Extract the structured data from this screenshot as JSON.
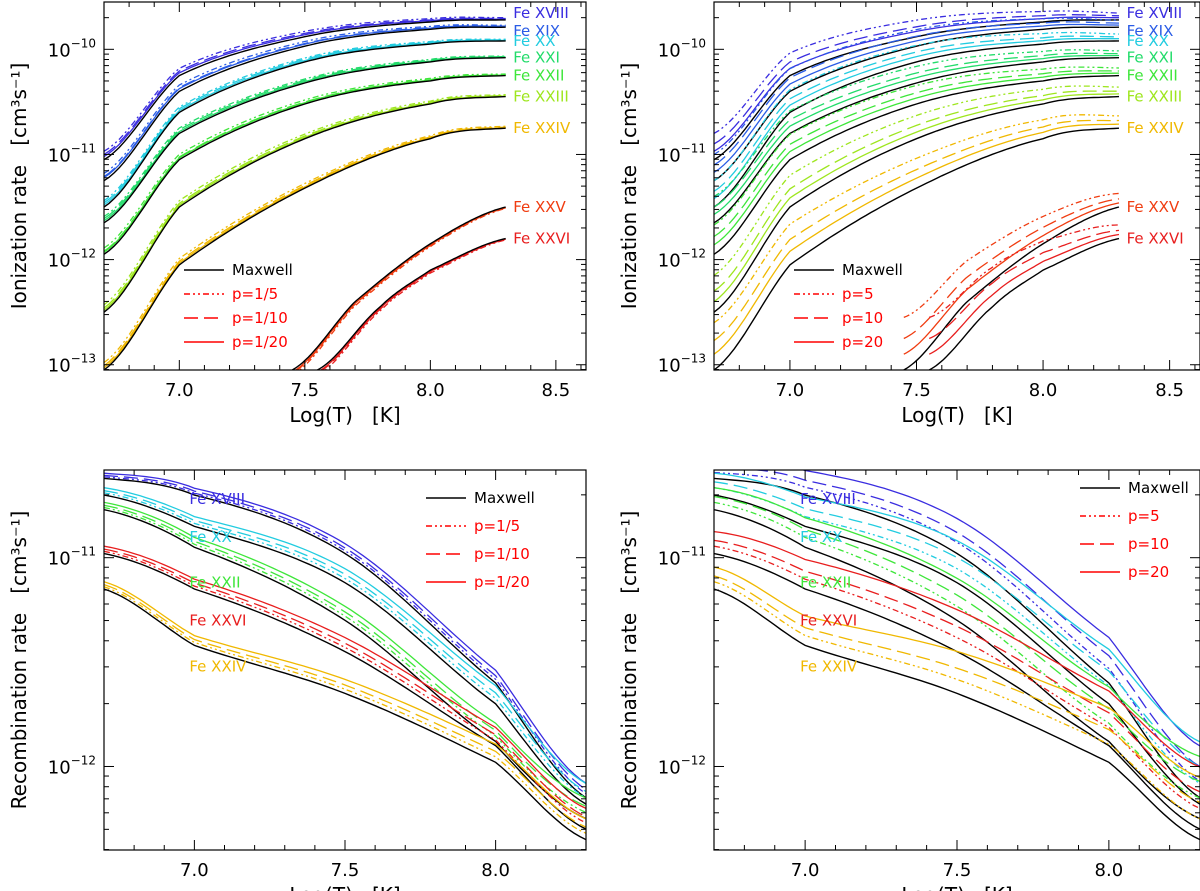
{
  "colors": {
    "Fe XVIII": "#3a2de0",
    "Fe XIX": "#2a5ce6",
    "Fe XX": "#22cce0",
    "Fe XXI": "#22dc6a",
    "Fe XXII": "#3ee63a",
    "Fe XXIII": "#9ee61e",
    "Fe XXIV": "#f0b800",
    "Fe XXV": "#f03c10",
    "Fe XXVI": "#e81e1e",
    "Maxwell": "#000000",
    "legend_red": "#ff0000"
  },
  "chart_data": [
    {
      "type": "line",
      "panel": "top-left",
      "xlabel": "Log(T)   [K]",
      "ylabel": "Ionization rate   [cm³s⁻¹]",
      "xlim": [
        6.7,
        8.62
      ],
      "ylim_log10": [
        -13.05,
        -9.55
      ],
      "yscale": "log",
      "xticks": [
        7.0,
        7.5,
        8.0,
        8.5
      ],
      "xtick_labels": [
        "7.0",
        "7.5",
        "8.0",
        "8.5"
      ],
      "yticks_log10": [
        -13,
        -12,
        -11,
        -10
      ],
      "legend": {
        "position": "lower-left",
        "entries": [
          "Maxwell",
          "p=1/5",
          "p=1/10",
          "p=1/20"
        ]
      },
      "ion_labels": [
        "Fe XVIII",
        "Fe XIX",
        "Fe XX",
        "Fe XXI",
        "Fe XXII",
        "Fe XXIII",
        "Fe XXIV",
        "Fe XXV",
        "Fe XXVI"
      ],
      "series": [
        {
          "name": "Fe XVIII",
          "maxwell": [
            [
              6.7,
              -11.05
            ],
            [
              7.0,
              -10.25
            ],
            [
              7.5,
              -9.88
            ],
            [
              8.0,
              -9.74
            ],
            [
              8.3,
              -9.72
            ]
          ],
          "kappa_offsets": [
            0.08,
            0.05,
            0.03
          ]
        },
        {
          "name": "Fe XIX",
          "maxwell": [
            [
              6.7,
              -11.25
            ],
            [
              7.0,
              -10.4
            ],
            [
              7.5,
              -9.97
            ],
            [
              8.0,
              -9.81
            ],
            [
              8.3,
              -9.79
            ]
          ],
          "kappa_offsets": [
            0.07,
            0.04,
            0.03
          ]
        },
        {
          "name": "Fe XX",
          "maxwell": [
            [
              6.7,
              -11.5
            ],
            [
              7.0,
              -10.6
            ],
            [
              7.5,
              -10.12
            ],
            [
              8.0,
              -9.95
            ],
            [
              8.3,
              -9.92
            ]
          ],
          "kappa_offsets": [
            0.06,
            0.04,
            0.02
          ]
        },
        {
          "name": "Fe XXI",
          "maxwell": [
            [
              6.7,
              -11.65
            ],
            [
              7.0,
              -10.8
            ],
            [
              7.5,
              -10.32
            ],
            [
              8.0,
              -10.12
            ],
            [
              8.3,
              -10.08
            ]
          ],
          "kappa_offsets": [
            0.06,
            0.04,
            0.02
          ]
        },
        {
          "name": "Fe XXII",
          "maxwell": [
            [
              6.7,
              -11.95
            ],
            [
              7.0,
              -11.05
            ],
            [
              7.5,
              -10.52
            ],
            [
              8.0,
              -10.3
            ],
            [
              8.3,
              -10.25
            ]
          ],
          "kappa_offsets": [
            0.06,
            0.03,
            0.02
          ]
        },
        {
          "name": "Fe XXIII",
          "maxwell": [
            [
              6.7,
              -12.5
            ],
            [
              7.0,
              -11.5
            ],
            [
              7.5,
              -10.85
            ],
            [
              8.0,
              -10.52
            ],
            [
              8.3,
              -10.45
            ]
          ],
          "kappa_offsets": [
            0.07,
            0.04,
            0.02
          ]
        },
        {
          "name": "Fe XXIV",
          "maxwell": [
            [
              6.7,
              -13.05
            ],
            [
              7.0,
              -12.05
            ],
            [
              7.5,
              -11.32
            ],
            [
              8.0,
              -10.85
            ],
            [
              8.3,
              -10.75
            ]
          ],
          "kappa_offsets": [
            0.07,
            0.04,
            0.02
          ]
        },
        {
          "name": "Fe XXV",
          "maxwell": [
            [
              7.45,
              -13.05
            ],
            [
              7.7,
              -12.4
            ],
            [
              8.0,
              -11.85
            ],
            [
              8.3,
              -11.5
            ]
          ],
          "kappa_offsets": [
            -0.05,
            -0.03,
            -0.02
          ]
        },
        {
          "name": "Fe XXVI",
          "maxwell": [
            [
              7.55,
              -13.05
            ],
            [
              7.8,
              -12.45
            ],
            [
              8.0,
              -12.1
            ],
            [
              8.3,
              -11.8
            ]
          ],
          "kappa_offsets": [
            -0.05,
            -0.03,
            -0.02
          ]
        }
      ]
    },
    {
      "type": "line",
      "panel": "top-right",
      "xlabel": "Log(T)   [K]",
      "ylabel": "Ionization rate   [cm³s⁻¹]",
      "xlim": [
        6.7,
        8.62
      ],
      "ylim_log10": [
        -13.05,
        -9.55
      ],
      "yscale": "log",
      "xticks": [
        7.0,
        7.5,
        8.0,
        8.5
      ],
      "xtick_labels": [
        "7.0",
        "7.5",
        "8.0",
        "8.5"
      ],
      "yticks_log10": [
        -13,
        -12,
        -11,
        -10
      ],
      "legend": {
        "position": "lower-left",
        "entries": [
          "Maxwell",
          "p=5",
          "p=10",
          "p=20"
        ]
      },
      "ion_labels": [
        "Fe XVIII",
        "Fe XIX",
        "Fe XX",
        "Fe XXI",
        "Fe XXII",
        "Fe XXIII",
        "Fe XXIV",
        "Fe XXV",
        "Fe XXVI"
      ],
      "series": [
        {
          "name": "Fe XVIII",
          "maxwell": [
            [
              6.7,
              -11.05
            ],
            [
              7.0,
              -10.25
            ],
            [
              7.5,
              -9.88
            ],
            [
              8.0,
              -9.74
            ],
            [
              8.3,
              -9.72
            ]
          ],
          "kappa_offsets": [
            0.25,
            0.15,
            0.08
          ]
        },
        {
          "name": "Fe XIX",
          "maxwell": [
            [
              6.7,
              -11.25
            ],
            [
              7.0,
              -10.4
            ],
            [
              7.5,
              -9.97
            ],
            [
              8.0,
              -9.81
            ],
            [
              8.3,
              -9.79
            ]
          ],
          "kappa_offsets": [
            0.25,
            0.15,
            0.08
          ]
        },
        {
          "name": "Fe XX",
          "maxwell": [
            [
              6.7,
              -11.5
            ],
            [
              7.0,
              -10.6
            ],
            [
              7.5,
              -10.12
            ],
            [
              8.0,
              -9.95
            ],
            [
              8.3,
              -9.92
            ]
          ],
          "kappa_offsets": [
            0.25,
            0.15,
            0.08
          ]
        },
        {
          "name": "Fe XXI",
          "maxwell": [
            [
              6.7,
              -11.65
            ],
            [
              7.0,
              -10.8
            ],
            [
              7.5,
              -10.32
            ],
            [
              8.0,
              -10.12
            ],
            [
              8.3,
              -10.08
            ]
          ],
          "kappa_offsets": [
            0.25,
            0.15,
            0.08
          ]
        },
        {
          "name": "Fe XXII",
          "maxwell": [
            [
              6.7,
              -11.95
            ],
            [
              7.0,
              -11.05
            ],
            [
              7.5,
              -10.52
            ],
            [
              8.0,
              -10.3
            ],
            [
              8.3,
              -10.25
            ]
          ],
          "kappa_offsets": [
            0.28,
            0.17,
            0.09
          ]
        },
        {
          "name": "Fe XXIII",
          "maxwell": [
            [
              6.7,
              -12.5
            ],
            [
              7.0,
              -11.5
            ],
            [
              7.5,
              -10.85
            ],
            [
              8.0,
              -10.52
            ],
            [
              8.3,
              -10.45
            ]
          ],
          "kappa_offsets": [
            0.35,
            0.2,
            0.1
          ]
        },
        {
          "name": "Fe XXIV",
          "maxwell": [
            [
              6.7,
              -13.05
            ],
            [
              7.0,
              -12.05
            ],
            [
              7.5,
              -11.32
            ],
            [
              8.0,
              -10.85
            ],
            [
              8.3,
              -10.75
            ]
          ],
          "kappa_offsets": [
            0.45,
            0.28,
            0.15
          ]
        },
        {
          "name": "Fe XXV",
          "maxwell": [
            [
              7.45,
              -13.05
            ],
            [
              7.7,
              -12.4
            ],
            [
              8.0,
              -11.85
            ],
            [
              8.3,
              -11.5
            ]
          ],
          "kappa_offsets": [
            0.5,
            0.3,
            0.15
          ]
        },
        {
          "name": "Fe XXVI",
          "maxwell": [
            [
              7.55,
              -13.05
            ],
            [
              7.8,
              -12.45
            ],
            [
              8.0,
              -12.1
            ],
            [
              8.3,
              -11.8
            ]
          ],
          "kappa_offsets": [
            0.5,
            0.3,
            0.15
          ]
        }
      ]
    },
    {
      "type": "line",
      "panel": "bottom-left",
      "xlabel": "Log(T)   [K]",
      "ylabel": "Recombination rate   [cm³s⁻¹]",
      "xlim": [
        6.7,
        8.3
      ],
      "ylim_log10": [
        -12.4,
        -10.58
      ],
      "yscale": "log",
      "xticks": [
        7.0,
        7.5,
        8.0
      ],
      "xtick_labels": [
        "7.0",
        "7.5",
        "8.0"
      ],
      "yticks_log10": [
        -12,
        -11
      ],
      "legend": {
        "position": "top-right",
        "entries": [
          "Maxwell",
          "p=1/5",
          "p=1/10",
          "p=1/20"
        ]
      },
      "ion_labels": [
        "Fe XVIII",
        "Fe XX",
        "Fe XXII",
        "Fe XXVI",
        "Fe XXIV"
      ],
      "series": [
        {
          "name": "Fe XVIII",
          "maxwell": [
            [
              6.7,
              -10.62
            ],
            [
              7.0,
              -10.7
            ],
            [
              7.5,
              -10.98
            ],
            [
              8.0,
              -11.6
            ],
            [
              8.3,
              -12.15
            ]
          ],
          "kappa_offsets": [
            0.02,
            0.04,
            0.07
          ]
        },
        {
          "name": "Fe XX",
          "maxwell": [
            [
              6.7,
              -10.7
            ],
            [
              7.0,
              -10.85
            ],
            [
              7.5,
              -11.12
            ],
            [
              8.0,
              -11.7
            ],
            [
              8.3,
              -12.18
            ]
          ],
          "kappa_offsets": [
            0.03,
            0.06,
            0.1
          ]
        },
        {
          "name": "Fe XXII",
          "maxwell": [
            [
              6.7,
              -10.77
            ],
            [
              7.0,
              -10.95
            ],
            [
              7.5,
              -11.3
            ],
            [
              8.0,
              -11.88
            ],
            [
              8.3,
              -12.25
            ]
          ],
          "kappa_offsets": [
            0.03,
            0.06,
            0.1
          ]
        },
        {
          "name": "Fe XXVI",
          "maxwell": [
            [
              6.7,
              -10.98
            ],
            [
              7.0,
              -11.15
            ],
            [
              7.5,
              -11.45
            ],
            [
              8.0,
              -11.9
            ],
            [
              8.3,
              -12.3
            ]
          ],
          "kappa_offsets": [
            0.03,
            0.06,
            0.1
          ]
        },
        {
          "name": "Fe XXIV",
          "maxwell": [
            [
              6.7,
              -11.15
            ],
            [
              7.0,
              -11.42
            ],
            [
              7.5,
              -11.65
            ],
            [
              8.0,
              -11.98
            ],
            [
              8.3,
              -12.35
            ]
          ],
          "kappa_offsets": [
            0.03,
            0.06,
            0.1
          ]
        }
      ]
    },
    {
      "type": "line",
      "panel": "bottom-right",
      "xlabel": "Log(T)   [K]",
      "ylabel": "Recombination rate   [cm³s⁻¹]",
      "xlim": [
        6.7,
        8.3
      ],
      "ylim_log10": [
        -12.4,
        -10.58
      ],
      "yscale": "log",
      "xticks": [
        7.0,
        7.5,
        8.0
      ],
      "xtick_labels": [
        "7.0",
        "7.5",
        "8.0"
      ],
      "yticks_log10": [
        -12,
        -11
      ],
      "legend": {
        "position": "top-right",
        "entries": [
          "Maxwell",
          "p=5",
          "p=10",
          "p=20"
        ]
      },
      "ion_labels": [
        "Fe XVIII",
        "Fe XX",
        "Fe XXII",
        "Fe XXVI",
        "Fe XXIV"
      ],
      "series": [
        {
          "name": "Fe XVIII",
          "maxwell": [
            [
              6.7,
              -10.62
            ],
            [
              7.0,
              -10.7
            ],
            [
              7.5,
              -10.98
            ],
            [
              8.0,
              -11.6
            ],
            [
              8.3,
              -12.15
            ]
          ],
          "kappa_offsets": [
            0.08,
            0.15,
            0.25
          ]
        },
        {
          "name": "Fe XX",
          "maxwell": [
            [
              6.7,
              -10.7
            ],
            [
              7.0,
              -10.85
            ],
            [
              7.5,
              -11.12
            ],
            [
              8.0,
              -11.7
            ],
            [
              8.3,
              -12.18
            ]
          ],
          "kappa_offsets": [
            0.1,
            0.18,
            0.3
          ]
        },
        {
          "name": "Fe XXII",
          "maxwell": [
            [
              6.7,
              -10.77
            ],
            [
              7.0,
              -10.95
            ],
            [
              7.5,
              -11.3
            ],
            [
              8.0,
              -11.88
            ],
            [
              8.3,
              -12.25
            ]
          ],
          "kappa_offsets": [
            0.1,
            0.18,
            0.3
          ]
        },
        {
          "name": "Fe XXVI",
          "maxwell": [
            [
              6.7,
              -10.98
            ],
            [
              7.0,
              -11.15
            ],
            [
              7.5,
              -11.45
            ],
            [
              8.0,
              -11.9
            ],
            [
              8.3,
              -12.3
            ]
          ],
          "kappa_offsets": [
            0.1,
            0.18,
            0.3
          ]
        },
        {
          "name": "Fe XXIV",
          "maxwell": [
            [
              6.7,
              -11.15
            ],
            [
              7.0,
              -11.42
            ],
            [
              7.5,
              -11.65
            ],
            [
              8.0,
              -11.98
            ],
            [
              8.3,
              -12.35
            ]
          ],
          "kappa_offsets": [
            0.1,
            0.18,
            0.3
          ]
        }
      ]
    }
  ]
}
